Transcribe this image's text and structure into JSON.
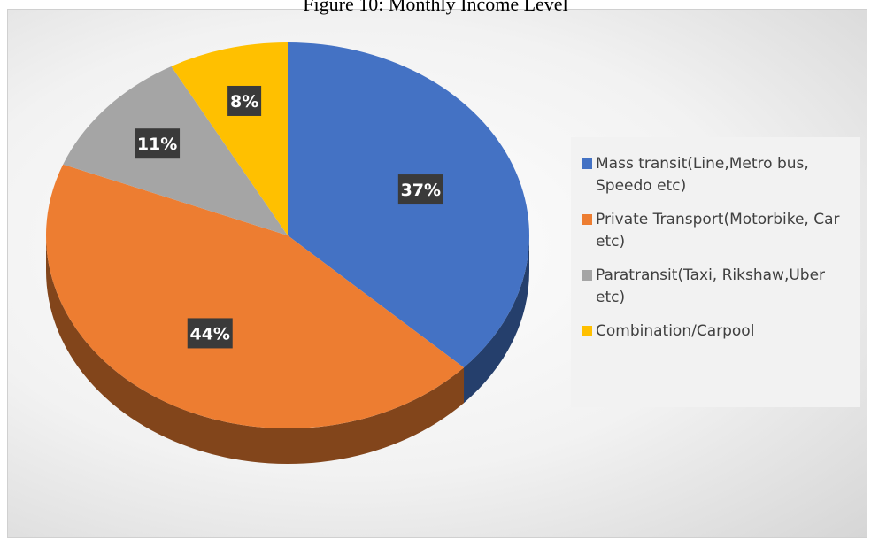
{
  "chart_data": {
    "type": "pie",
    "title": "Figure 10: Monthly Income Level",
    "categories": [
      "Mass transit(Line,Metro bus, Speedo etc)",
      "Private Transport(Motorbike, Car etc)",
      "Paratransit(Taxi, Rikshaw,Uber etc)",
      "Combination/Carpool"
    ],
    "values": [
      37,
      44,
      11,
      8
    ],
    "value_labels": [
      "37%",
      "44%",
      "11%",
      "8%"
    ],
    "colors": [
      "#4472c4",
      "#ed7d31",
      "#a5a5a5",
      "#ffc000"
    ],
    "legend": "right"
  }
}
